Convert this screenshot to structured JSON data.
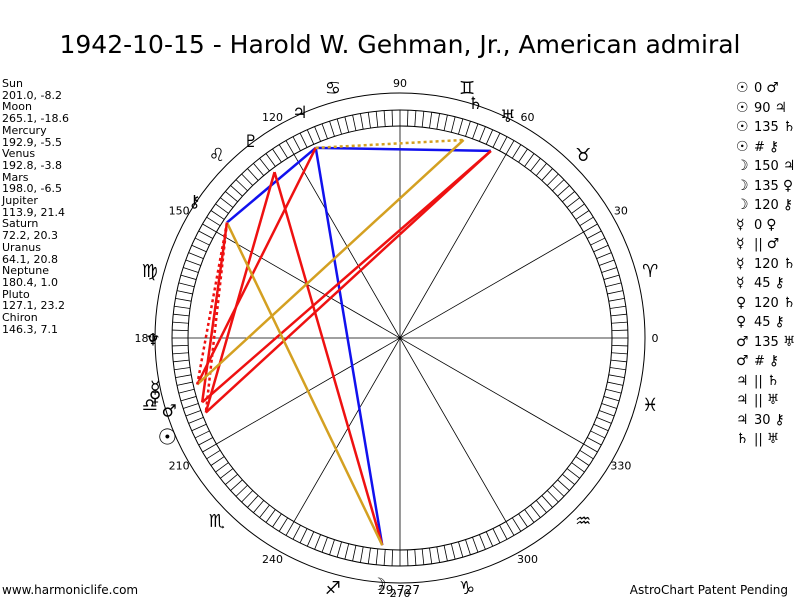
{
  "title": "1942-10-15 - Harold W. Gehman, Jr., American admiral",
  "footer": {
    "left": "www.harmoniclife.com",
    "right": "AstroChart Patent Pending"
  },
  "planets": [
    {
      "name": "Sun",
      "pos": "201.0, -8.2",
      "glyph": "☉"
    },
    {
      "name": "Moon",
      "pos": "265.1, -18.6",
      "glyph": "☽"
    },
    {
      "name": "Mercury",
      "pos": "192.9, -5.5",
      "glyph": "☿"
    },
    {
      "name": "Venus",
      "pos": "192.8, -3.8",
      "glyph": "♀"
    },
    {
      "name": "Mars",
      "pos": "198.0, -6.5",
      "glyph": "♂"
    },
    {
      "name": "Jupiter",
      "pos": "113.9, 21.4",
      "glyph": "♃"
    },
    {
      "name": "Saturn",
      "pos": "72.2, 20.3",
      "glyph": "♄"
    },
    {
      "name": "Uranus",
      "pos": "64.1, 20.8",
      "glyph": "♅"
    },
    {
      "name": "Neptune",
      "pos": "180.4, 1.0",
      "glyph": "♆"
    },
    {
      "name": "Pluto",
      "pos": "127.1, 23.2",
      "glyph": "♇"
    },
    {
      "name": "Chiron",
      "pos": "146.3, 7.1",
      "glyph": "⚷"
    }
  ],
  "aspects": [
    {
      "p1": "☉",
      "asp": "0",
      "p2": "♂"
    },
    {
      "p1": "☉",
      "asp": "90",
      "p2": "♃"
    },
    {
      "p1": "☉",
      "asp": "135",
      "p2": "♄"
    },
    {
      "p1": "☉",
      "asp": "#",
      "p2": "⚷"
    },
    {
      "p1": "☽",
      "asp": "150",
      "p2": "♃"
    },
    {
      "p1": "☽",
      "asp": "135",
      "p2": "♀"
    },
    {
      "p1": "☽",
      "asp": "120",
      "p2": "⚷"
    },
    {
      "p1": "☿",
      "asp": "0",
      "p2": "♀"
    },
    {
      "p1": "☿",
      "asp": "||",
      "p2": "♂"
    },
    {
      "p1": "☿",
      "asp": "120",
      "p2": "♄"
    },
    {
      "p1": "☿",
      "asp": "45",
      "p2": "⚷"
    },
    {
      "p1": "♀",
      "asp": "120",
      "p2": "♄"
    },
    {
      "p1": "♀",
      "asp": "45",
      "p2": "⚷"
    },
    {
      "p1": "♂",
      "asp": "135",
      "p2": "♅"
    },
    {
      "p1": "♂",
      "asp": "#",
      "p2": "⚷"
    },
    {
      "p1": "♃",
      "asp": "||",
      "p2": "♄"
    },
    {
      "p1": "♃",
      "asp": "||",
      "p2": "♅"
    },
    {
      "p1": "♃",
      "asp": "30",
      "p2": "⚷"
    },
    {
      "p1": "♄",
      "asp": "||",
      "p2": "♅"
    }
  ],
  "wheel": {
    "degree_labels": [
      "0",
      "30",
      "60",
      "90",
      "120",
      "150",
      "180",
      "210",
      "240",
      "270",
      "300",
      "330"
    ],
    "moon_label": "29,727",
    "signs": [
      "♈",
      "♉",
      "♊",
      "♋",
      "♌",
      "♍",
      "♎",
      "♏",
      "♐",
      "♑",
      "♒",
      "♓"
    ],
    "colors": {
      "red": "#ee1111",
      "blue": "#1111ee",
      "gold": "#d4a021",
      "ink": "#000000"
    }
  }
}
